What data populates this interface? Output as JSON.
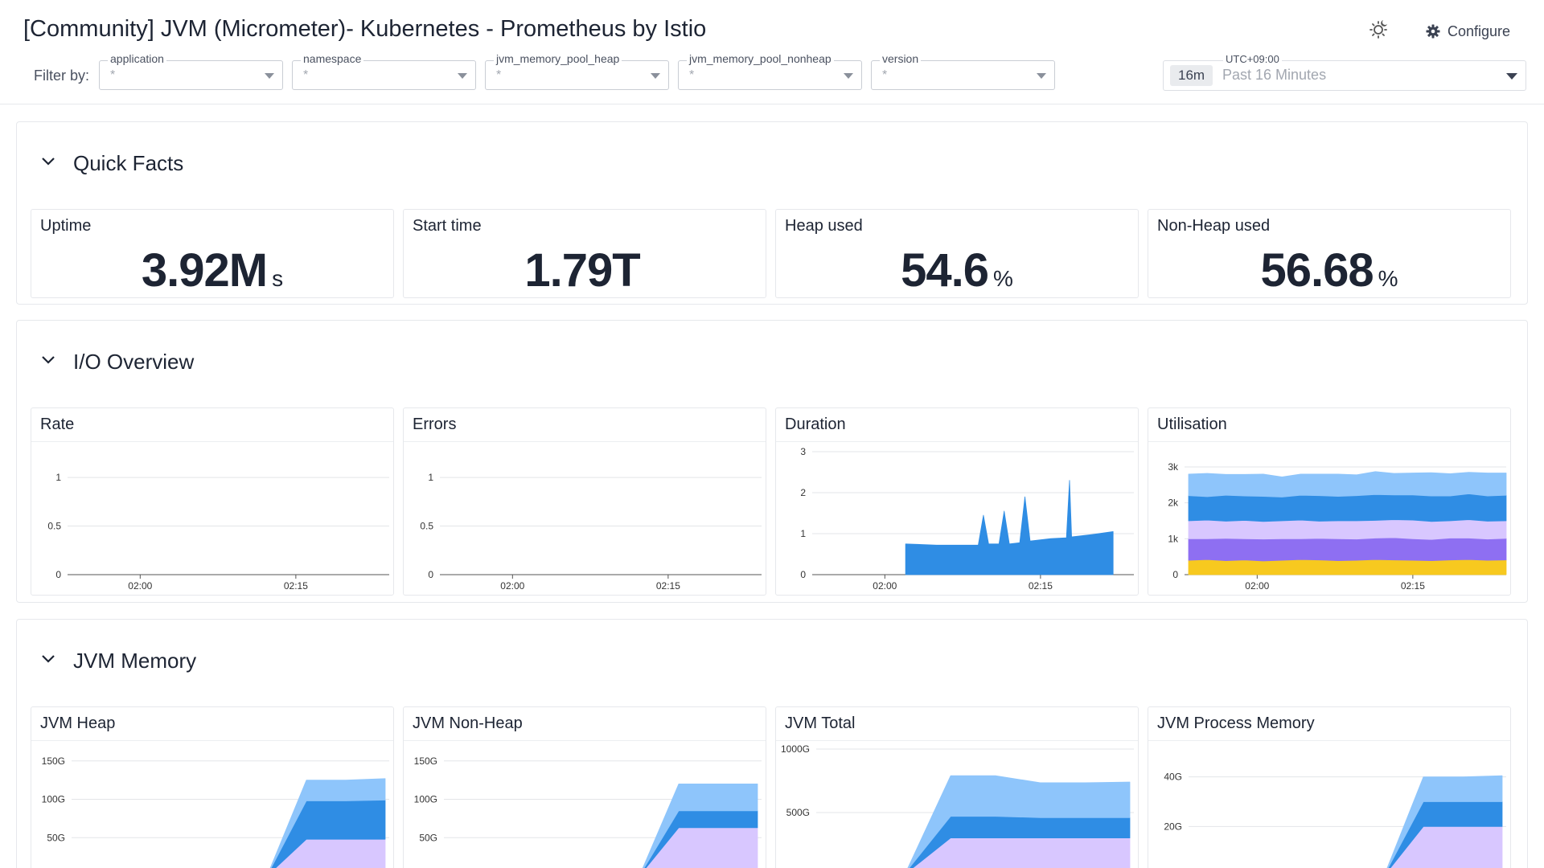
{
  "header": {
    "title": "[Community] JVM (Micrometer)- Kubernetes - Prometheus by Istio",
    "configure_label": "Configure",
    "filter_by_label": "Filter by:",
    "filters": [
      {
        "label": "application",
        "value": "*"
      },
      {
        "label": "namespace",
        "value": "*"
      },
      {
        "label": "jvm_memory_pool_heap",
        "value": "*"
      },
      {
        "label": "jvm_memory_pool_nonheap",
        "value": "*"
      },
      {
        "label": "version",
        "value": "*"
      }
    ],
    "time": {
      "timezone": "UTC+09:00",
      "badge": "16m",
      "range": "Past 16 Minutes"
    }
  },
  "sections": [
    {
      "title": "Quick Facts",
      "stats": [
        {
          "title": "Uptime",
          "value": "3.92M",
          "unit": "s"
        },
        {
          "title": "Start time",
          "value": "1.79T",
          "unit": ""
        },
        {
          "title": "Heap used",
          "value": "54.6",
          "unit": "%"
        },
        {
          "title": "Non-Heap used",
          "value": "56.68",
          "unit": "%"
        }
      ]
    },
    {
      "title": "I/O Overview"
    },
    {
      "title": "JVM Memory"
    }
  ],
  "colors": {
    "blue": "#2f8de4",
    "light_blue": "#8ec5fb",
    "lavender": "#d8c7ff",
    "purple": "#8e6ff2",
    "yellow": "#f7c91f"
  },
  "chart_data": [
    {
      "title": "Rate",
      "type": "line",
      "x_ticks": [
        "02:00",
        "02:15"
      ],
      "y_ticks": [
        "0",
        "0.5",
        "1"
      ],
      "ylim": [
        0,
        1.1
      ],
      "series": [
        {
          "values": []
        }
      ]
    },
    {
      "title": "Errors",
      "type": "line",
      "x_ticks": [
        "02:00",
        "02:15"
      ],
      "y_ticks": [
        "0",
        "0.5",
        "1"
      ],
      "ylim": [
        0,
        1.1
      ],
      "series": [
        {
          "values": []
        }
      ]
    },
    {
      "title": "Duration",
      "type": "area",
      "x_ticks": [
        "02:00",
        "02:15"
      ],
      "y_ticks": [
        "0",
        "1",
        "2",
        "3"
      ],
      "ylim": [
        0,
        3
      ],
      "series": [
        {
          "color": "#2f8de4",
          "x": [
            "02:02",
            "02:05",
            "02:08",
            "02:09",
            "02:09.5",
            "02:10",
            "02:11",
            "02:11.5",
            "02:12",
            "02:13",
            "02:13.5",
            "02:14",
            "02:16",
            "02:17.5",
            "02:17.8",
            "02:18",
            "02:20",
            "02:22"
          ],
          "values": [
            0.75,
            0.72,
            0.72,
            0.72,
            1.45,
            0.75,
            0.75,
            1.55,
            0.75,
            0.78,
            1.9,
            0.82,
            0.88,
            0.9,
            2.3,
            0.92,
            0.98,
            1.05
          ]
        }
      ]
    },
    {
      "title": "Utilisation",
      "type": "area",
      "x_ticks": [
        "02:00",
        "02:15"
      ],
      "y_ticks": [
        "0",
        "1k",
        "2k",
        "3k"
      ],
      "ylim": [
        0,
        3200
      ],
      "series": [
        {
          "name": "",
          "color": "#f7c91f",
          "values": [
            400,
            420,
            390,
            410,
            380,
            400,
            420,
            410,
            390,
            400,
            420,
            410,
            400,
            390,
            410,
            420,
            400,
            410
          ]
        },
        {
          "name": "",
          "color": "#8e6ff2",
          "values": [
            600,
            580,
            620,
            590,
            610,
            600,
            580,
            600,
            610,
            590,
            600,
            620,
            600,
            590,
            610,
            600,
            590,
            600
          ]
        },
        {
          "name": "",
          "color": "#d8c7ff",
          "values": [
            500,
            520,
            480,
            510,
            490,
            500,
            520,
            480,
            500,
            510,
            490,
            500,
            520,
            500,
            480,
            510,
            500,
            490
          ]
        },
        {
          "name": "",
          "color": "#2f8de4",
          "values": [
            700,
            650,
            720,
            680,
            700,
            660,
            690,
            710,
            680,
            700,
            720,
            690,
            700,
            710,
            690,
            720,
            700,
            710
          ]
        },
        {
          "name": "",
          "color": "#8ec5fb",
          "values": [
            600,
            650,
            580,
            600,
            620,
            560,
            590,
            600,
            620,
            580,
            640,
            600,
            610,
            650,
            620,
            600,
            640,
            620
          ]
        }
      ]
    },
    {
      "title": "JVM Heap",
      "type": "area",
      "x_ticks": [],
      "y_ticks": [
        "0",
        "50G",
        "100G",
        "150G"
      ],
      "ylim": [
        0,
        155
      ],
      "series": [
        {
          "color": "#d8c7ff",
          "values": [
            0,
            0,
            0,
            48,
            48,
            48
          ]
        },
        {
          "color": "#2f8de4",
          "values": [
            0,
            0,
            0,
            50,
            50,
            51
          ]
        },
        {
          "color": "#8ec5fb",
          "values": [
            0,
            0,
            0,
            27,
            27,
            28
          ]
        }
      ]
    },
    {
      "title": "JVM Non-Heap",
      "type": "area",
      "x_ticks": [],
      "y_ticks": [
        "0",
        "50G",
        "100G",
        "150G"
      ],
      "ylim": [
        0,
        155
      ],
      "series": [
        {
          "color": "#d8c7ff",
          "values": [
            0,
            0,
            0,
            63,
            63,
            63
          ]
        },
        {
          "color": "#2f8de4",
          "values": [
            0,
            0,
            0,
            22,
            22,
            22
          ]
        },
        {
          "color": "#8ec5fb",
          "values": [
            0,
            0,
            0,
            35,
            35,
            35
          ]
        }
      ]
    },
    {
      "title": "JVM Total",
      "type": "area",
      "x_ticks": [],
      "y_ticks": [
        "0",
        "500G",
        "1000G"
      ],
      "ylim": [
        0,
        1000
      ],
      "series": [
        {
          "color": "#d8c7ff",
          "values": [
            20,
            20,
            20,
            300,
            300,
            300,
            300,
            300
          ]
        },
        {
          "color": "#2f8de4",
          "values": [
            10,
            10,
            10,
            170,
            170,
            160,
            160,
            160
          ]
        },
        {
          "color": "#8ec5fb",
          "values": [
            0,
            0,
            0,
            320,
            320,
            275,
            275,
            280
          ]
        }
      ]
    },
    {
      "title": "JVM Process Memory",
      "type": "area",
      "x_ticks": [],
      "y_ticks": [
        "0",
        "20G",
        "40G"
      ],
      "ylim": [
        0,
        48
      ],
      "series": [
        {
          "color": "#d8c7ff",
          "values": [
            0,
            0,
            0,
            20,
            20,
            20
          ]
        },
        {
          "color": "#2f8de4",
          "values": [
            0,
            0,
            0,
            10,
            10,
            10
          ]
        },
        {
          "color": "#8ec5fb",
          "values": [
            0,
            0,
            0,
            10,
            10,
            10.5
          ]
        }
      ]
    }
  ]
}
